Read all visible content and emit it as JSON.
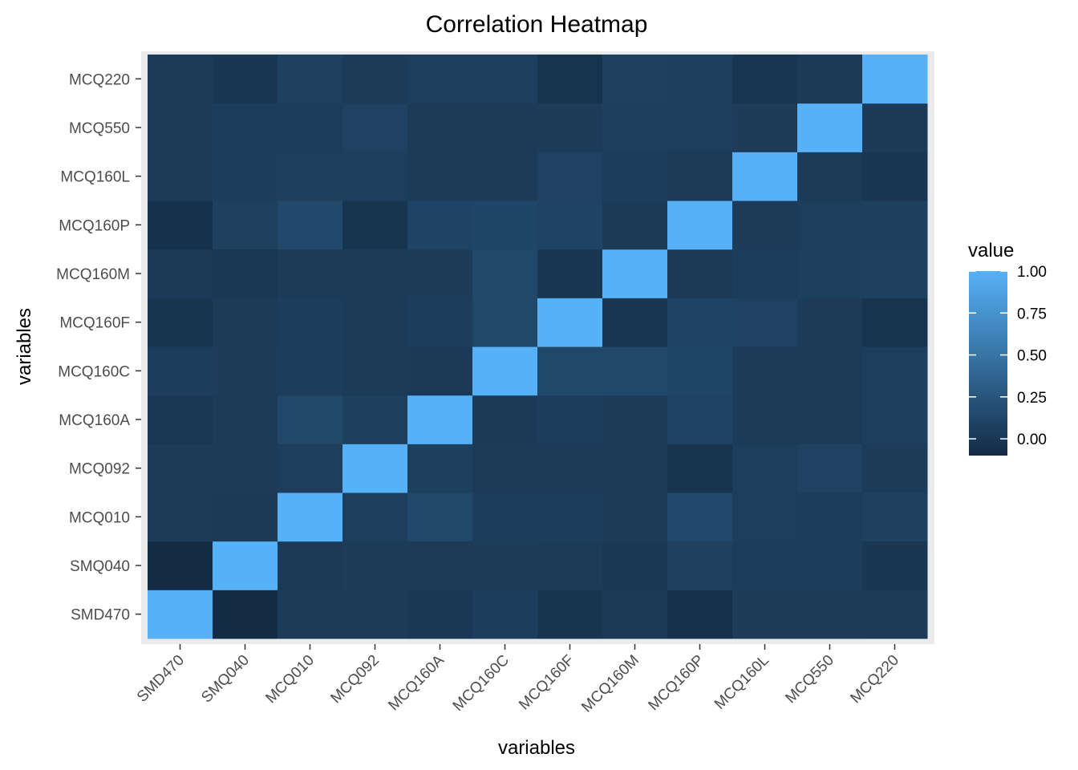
{
  "chart_data": {
    "type": "heatmap",
    "title": "Correlation Heatmap",
    "xlabel": "variables",
    "ylabel": "variables",
    "x_categories": [
      "SMD470",
      "SMQ040",
      "MCQ010",
      "MCQ092",
      "MCQ160A",
      "MCQ160C",
      "MCQ160F",
      "MCQ160M",
      "MCQ160P",
      "MCQ160L",
      "MCQ550",
      "MCQ220"
    ],
    "y_categories": [
      "SMD470",
      "SMQ040",
      "MCQ010",
      "MCQ092",
      "MCQ160A",
      "MCQ160C",
      "MCQ160F",
      "MCQ160M",
      "MCQ160P",
      "MCQ160L",
      "MCQ550",
      "MCQ220"
    ],
    "values": [
      [
        1.0,
        -0.1,
        0.03,
        0.03,
        0.01,
        0.05,
        -0.02,
        0.02,
        -0.05,
        0.04,
        0.04,
        0.03
      ],
      [
        -0.1,
        1.0,
        0.02,
        0.04,
        0.03,
        0.04,
        0.03,
        0.01,
        0.08,
        0.05,
        0.05,
        0.0
      ],
      [
        0.03,
        0.02,
        1.0,
        0.06,
        0.13,
        0.05,
        0.05,
        0.03,
        0.15,
        0.06,
        0.05,
        0.08
      ],
      [
        0.03,
        0.04,
        0.06,
        1.0,
        0.07,
        0.03,
        0.03,
        0.03,
        -0.02,
        0.06,
        0.09,
        0.04
      ],
      [
        0.01,
        0.03,
        0.13,
        0.07,
        1.0,
        0.02,
        0.05,
        0.04,
        0.1,
        0.04,
        0.03,
        0.06
      ],
      [
        0.05,
        0.04,
        0.05,
        0.03,
        0.02,
        1.0,
        0.13,
        0.13,
        0.12,
        0.03,
        0.03,
        0.06
      ],
      [
        -0.02,
        0.03,
        0.05,
        0.03,
        0.05,
        0.13,
        1.0,
        0.0,
        0.1,
        0.09,
        0.04,
        -0.03
      ],
      [
        0.02,
        0.01,
        0.03,
        0.03,
        0.04,
        0.13,
        0.0,
        1.0,
        0.02,
        0.05,
        0.07,
        0.08
      ],
      [
        -0.05,
        0.08,
        0.15,
        -0.02,
        0.1,
        0.12,
        0.1,
        0.02,
        1.0,
        0.04,
        0.06,
        0.07
      ],
      [
        0.04,
        0.05,
        0.06,
        0.06,
        0.04,
        0.03,
        0.09,
        0.05,
        0.04,
        1.0,
        0.04,
        -0.01
      ],
      [
        0.04,
        0.05,
        0.05,
        0.09,
        0.03,
        0.03,
        0.04,
        0.07,
        0.06,
        0.04,
        1.0,
        0.02
      ],
      [
        0.03,
        0.0,
        0.08,
        0.04,
        0.06,
        0.06,
        -0.03,
        0.08,
        0.07,
        -0.01,
        0.02,
        1.0
      ]
    ],
    "color_scale": {
      "low": "#132B43",
      "high": "#56B1F7",
      "min": -0.1,
      "max": 1.0
    },
    "legend": {
      "title": "value",
      "breaks": [
        "0.00",
        "0.25",
        "0.50",
        "0.75",
        "1.00"
      ],
      "position": "right"
    },
    "panel_background": "#EBEBEB"
  }
}
